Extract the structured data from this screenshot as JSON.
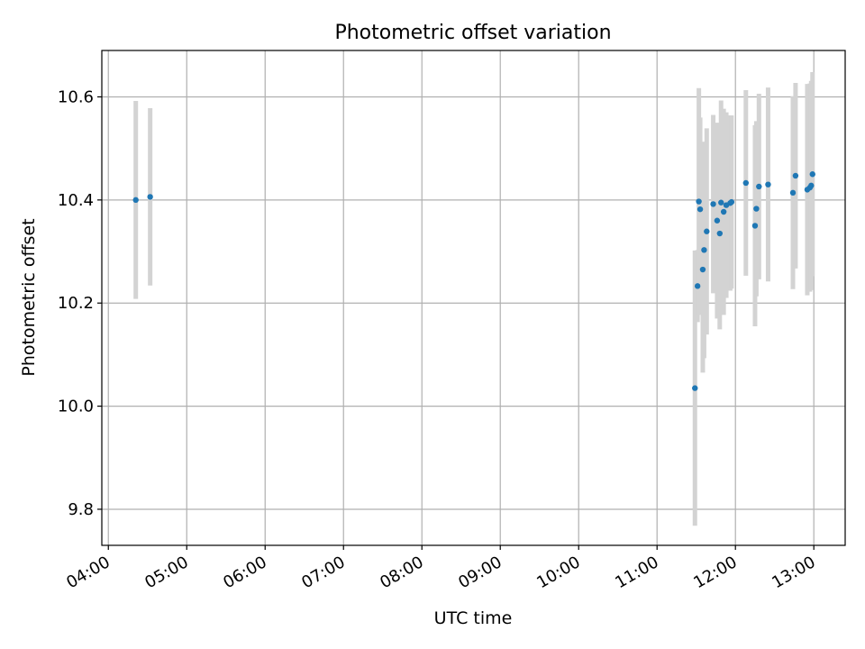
{
  "chart_data": {
    "type": "scatter",
    "title": "Photometric offset variation",
    "xlabel": "UTC time",
    "ylabel": "Photometric offset",
    "x_unit": "hours_utc",
    "xlim": [
      "03:55",
      "13:24"
    ],
    "ylim": [
      9.73,
      10.69
    ],
    "x_ticks": [
      "04:00",
      "05:00",
      "06:00",
      "07:00",
      "08:00",
      "09:00",
      "10:00",
      "11:00",
      "12:00",
      "13:00"
    ],
    "y_ticks": [
      9.8,
      10.0,
      10.2,
      10.4,
      10.6
    ],
    "y_tick_labels": [
      "9.8",
      "10.0",
      "10.2",
      "10.4",
      "10.6"
    ],
    "grid": true,
    "colors": {
      "marker": "#1f77b4",
      "errorbar": "#d3d3d3",
      "grid": "#b0b0b0"
    },
    "points": [
      {
        "x": "04:21",
        "y": 10.4,
        "err": 0.192
      },
      {
        "x": "04:32",
        "y": 10.406,
        "err": 0.172
      },
      {
        "x": "11:29",
        "y": 10.035,
        "err": 0.267
      },
      {
        "x": "11:31",
        "y": 10.233,
        "err": 0.07
      },
      {
        "x": "11:32",
        "y": 10.397,
        "err": 0.22
      },
      {
        "x": "11:33",
        "y": 10.382,
        "err": 0.178
      },
      {
        "x": "11:35",
        "y": 10.265,
        "err": 0.2
      },
      {
        "x": "11:36",
        "y": 10.303,
        "err": 0.21
      },
      {
        "x": "11:38",
        "y": 10.339,
        "err": 0.2
      },
      {
        "x": "11:43",
        "y": 10.392,
        "err": 0.173
      },
      {
        "x": "11:46",
        "y": 10.36,
        "err": 0.19
      },
      {
        "x": "11:48",
        "y": 10.335,
        "err": 0.186
      },
      {
        "x": "11:49",
        "y": 10.395,
        "err": 0.198
      },
      {
        "x": "11:51",
        "y": 10.377,
        "err": 0.2
      },
      {
        "x": "11:53",
        "y": 10.39,
        "err": 0.18
      },
      {
        "x": "11:56",
        "y": 10.394,
        "err": 0.17
      },
      {
        "x": "11:57",
        "y": 10.396,
        "err": 0.168
      },
      {
        "x": "12:08",
        "y": 10.433,
        "err": 0.18
      },
      {
        "x": "12:15",
        "y": 10.35,
        "err": 0.195
      },
      {
        "x": "12:16",
        "y": 10.383,
        "err": 0.17
      },
      {
        "x": "12:18",
        "y": 10.426,
        "err": 0.18
      },
      {
        "x": "12:25",
        "y": 10.43,
        "err": 0.188
      },
      {
        "x": "12:44",
        "y": 10.414,
        "err": 0.187
      },
      {
        "x": "12:46",
        "y": 10.447,
        "err": 0.18
      },
      {
        "x": "12:55",
        "y": 10.42,
        "err": 0.205
      },
      {
        "x": "12:57",
        "y": 10.424,
        "err": 0.202
      },
      {
        "x": "12:58",
        "y": 10.428,
        "err": 0.203
      },
      {
        "x": "12:59",
        "y": 10.45,
        "err": 0.198
      }
    ]
  }
}
